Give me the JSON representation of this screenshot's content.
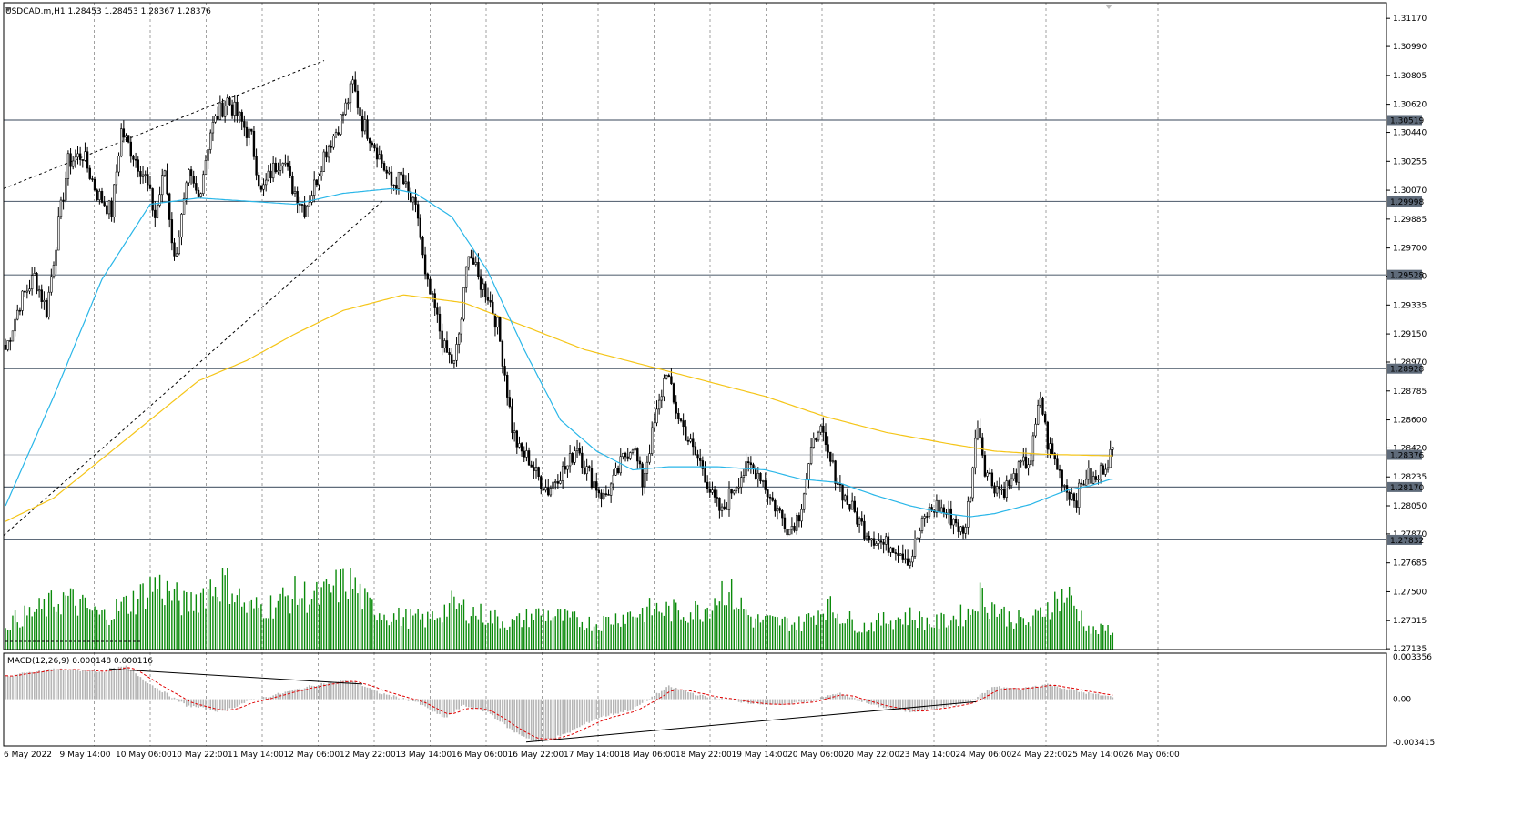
{
  "header": {
    "symbol_line": "USDCAD.m,H1  1.28453 1.28453 1.28367 1.28376"
  },
  "macd_label": "MACD(12,26,9) 0.000148 0.000116",
  "colors": {
    "candle": "#000000",
    "ma_fast": "#29b6e8",
    "ma_slow": "#f5c518",
    "volume": "#0a8a0a",
    "macd_hist": "#b5b5b5",
    "macd_signal": "#e00000",
    "hline": "#5f6b7a",
    "grid": "#8a8a8a",
    "price_box": "#5f6b7a"
  },
  "price_axis": {
    "ticks": [
      "1.31170",
      "1.30990",
      "1.30805",
      "1.30620",
      "1.30440",
      "1.30255",
      "1.30070",
      "1.29885",
      "1.29700",
      "1.29520",
      "1.29335",
      "1.29150",
      "1.28970",
      "1.28785",
      "1.28600",
      "1.28420",
      "1.28235",
      "1.28050",
      "1.27870",
      "1.27685",
      "1.27500",
      "1.27315",
      "1.27135"
    ],
    "levels": [
      "1.30519",
      "1.29998",
      "1.29528",
      "1.28928",
      "1.28376",
      "1.28170",
      "1.27832"
    ]
  },
  "macd_axis": {
    "ticks": [
      "0.003356",
      "0.00",
      "-0.003415"
    ]
  },
  "time_axis": [
    "6 May 2022",
    "9 May 14:00",
    "10 May 06:00",
    "10 May 22:00",
    "11 May 14:00",
    "12 May 06:00",
    "12 May 22:00",
    "13 May 14:00",
    "16 May 06:00",
    "16 May 22:00",
    "17 May 14:00",
    "18 May 06:00",
    "18 May 22:00",
    "19 May 14:00",
    "20 May 06:00",
    "20 May 22:00",
    "23 May 14:00",
    "24 May 06:00",
    "24 May 22:00",
    "25 May 14:00",
    "26 May 06:00"
  ],
  "chart_data": {
    "type": "candlestick",
    "symbol": "USDCAD.m",
    "timeframe": "H1",
    "last": {
      "open": 1.28453,
      "high": 1.28453,
      "low": 1.28367,
      "close": 1.28376
    },
    "price_range": [
      1.2713,
      1.3127
    ],
    "close_path": [
      [
        0,
        1.2905
      ],
      [
        6,
        1.2935
      ],
      [
        12,
        1.2952
      ],
      [
        17,
        1.293
      ],
      [
        22,
        1.2985
      ],
      [
        26,
        1.3025
      ],
      [
        32,
        1.303
      ],
      [
        38,
        1.3005
      ],
      [
        44,
        1.2993
      ],
      [
        48,
        1.3045
      ],
      [
        53,
        1.303
      ],
      [
        58,
        1.3015
      ],
      [
        62,
        1.299
      ],
      [
        66,
        1.302
      ],
      [
        70,
        1.2962
      ],
      [
        76,
        1.3015
      ],
      [
        80,
        1.3002
      ],
      [
        85,
        1.3045
      ],
      [
        88,
        1.3055
      ],
      [
        92,
        1.3065
      ],
      [
        96,
        1.3055
      ],
      [
        102,
        1.304
      ],
      [
        106,
        1.3005
      ],
      [
        110,
        1.3018
      ],
      [
        115,
        1.303
      ],
      [
        118,
        1.3012
      ],
      [
        124,
        1.2995
      ],
      [
        128,
        1.301
      ],
      [
        132,
        1.303
      ],
      [
        137,
        1.3045
      ],
      [
        141,
        1.306
      ],
      [
        144,
        1.3075
      ],
      [
        148,
        1.305
      ],
      [
        152,
        1.304
      ],
      [
        156,
        1.3025
      ],
      [
        160,
        1.301
      ],
      [
        164,
        1.3015
      ],
      [
        168,
        1.3
      ],
      [
        171,
        1.299
      ],
      [
        174,
        1.295
      ],
      [
        178,
        1.293
      ],
      [
        182,
        1.2905
      ],
      [
        186,
        1.2895
      ],
      [
        189,
        1.2925
      ],
      [
        192,
        1.297
      ],
      [
        196,
        1.295
      ],
      [
        200,
        1.294
      ],
      [
        204,
        1.292
      ],
      [
        207,
        1.289
      ],
      [
        210,
        1.2855
      ],
      [
        213,
        1.284
      ],
      [
        217,
        1.2835
      ],
      [
        220,
        1.2825
      ],
      [
        225,
        1.2815
      ],
      [
        229,
        1.2825
      ],
      [
        233,
        1.283
      ],
      [
        237,
        1.2845
      ],
      [
        240,
        1.283
      ],
      [
        244,
        1.282
      ],
      [
        248,
        1.281
      ],
      [
        252,
        1.282
      ],
      [
        256,
        1.2835
      ],
      [
        260,
        1.2845
      ],
      [
        264,
        1.282
      ],
      [
        268,
        1.285
      ],
      [
        271,
        1.287
      ],
      [
        274,
        1.2893
      ],
      [
        277,
        1.287
      ],
      [
        281,
        1.2855
      ],
      [
        285,
        1.284
      ],
      [
        289,
        1.283
      ],
      [
        293,
        1.281
      ],
      [
        297,
        1.28
      ],
      [
        301,
        1.2815
      ],
      [
        305,
        1.2825
      ],
      [
        309,
        1.283
      ],
      [
        313,
        1.2825
      ],
      [
        317,
        1.281
      ],
      [
        321,
        1.28
      ],
      [
        325,
        1.279
      ],
      [
        329,
        1.28
      ],
      [
        333,
        1.283
      ],
      [
        337,
        1.2858
      ],
      [
        340,
        1.284
      ],
      [
        344,
        1.2825
      ],
      [
        348,
        1.281
      ],
      [
        352,
        1.28
      ],
      [
        356,
        1.279
      ],
      [
        360,
        1.2785
      ],
      [
        364,
        1.278
      ],
      [
        368,
        1.278
      ],
      [
        372,
        1.2775
      ],
      [
        375,
        1.277
      ],
      [
        378,
        1.2785
      ],
      [
        382,
        1.28
      ],
      [
        386,
        1.2805
      ],
      [
        390,
        1.28
      ],
      [
        394,
        1.2795
      ],
      [
        397,
        1.2785
      ],
      [
        400,
        1.2815
      ],
      [
        403,
        1.286
      ],
      [
        406,
        1.283
      ],
      [
        409,
        1.282
      ],
      [
        413,
        1.2815
      ],
      [
        417,
        1.282
      ],
      [
        421,
        1.283
      ],
      [
        425,
        1.2835
      ],
      [
        429,
        1.2875
      ],
      [
        432,
        1.2845
      ],
      [
        436,
        1.283
      ],
      [
        440,
        1.2815
      ],
      [
        444,
        1.281
      ],
      [
        448,
        1.2825
      ],
      [
        452,
        1.282
      ],
      [
        455,
        1.283
      ],
      [
        458,
        1.2838
      ]
    ],
    "total_bars": 460,
    "ma_fast_path": [
      [
        0,
        1.2805
      ],
      [
        20,
        1.2875
      ],
      [
        40,
        1.295
      ],
      [
        60,
        1.2998
      ],
      [
        80,
        1.3002
      ],
      [
        100,
        1.3
      ],
      [
        120,
        1.2998
      ],
      [
        140,
        1.3005
      ],
      [
        160,
        1.3008
      ],
      [
        170,
        1.3005
      ],
      [
        185,
        1.299
      ],
      [
        200,
        1.2955
      ],
      [
        215,
        1.2905
      ],
      [
        230,
        1.286
      ],
      [
        245,
        1.284
      ],
      [
        260,
        1.2828
      ],
      [
        275,
        1.283
      ],
      [
        295,
        1.283
      ],
      [
        315,
        1.2828
      ],
      [
        330,
        1.2822
      ],
      [
        345,
        1.282
      ],
      [
        360,
        1.2812
      ],
      [
        375,
        1.2805
      ],
      [
        390,
        1.28
      ],
      [
        400,
        1.2798
      ],
      [
        410,
        1.28
      ],
      [
        425,
        1.2806
      ],
      [
        440,
        1.2815
      ],
      [
        450,
        1.2818
      ],
      [
        458,
        1.2822
      ]
    ],
    "ma_slow_path": [
      [
        0,
        1.2795
      ],
      [
        20,
        1.281
      ],
      [
        40,
        1.2835
      ],
      [
        60,
        1.286
      ],
      [
        80,
        1.2885
      ],
      [
        100,
        1.2898
      ],
      [
        120,
        1.2915
      ],
      [
        140,
        1.293
      ],
      [
        165,
        1.294
      ],
      [
        190,
        1.2935
      ],
      [
        215,
        1.292
      ],
      [
        240,
        1.2905
      ],
      [
        265,
        1.2895
      ],
      [
        290,
        1.2885
      ],
      [
        315,
        1.2875
      ],
      [
        340,
        1.2862
      ],
      [
        365,
        1.2852
      ],
      [
        390,
        1.2845
      ],
      [
        410,
        1.284
      ],
      [
        430,
        1.2838
      ],
      [
        458,
        1.2837
      ]
    ],
    "macd_hist_path": [
      [
        0,
        0.0018
      ],
      [
        20,
        0.0024
      ],
      [
        40,
        0.0022
      ],
      [
        50,
        0.0026
      ],
      [
        60,
        0.0012
      ],
      [
        75,
        -0.0005
      ],
      [
        90,
        -0.001
      ],
      [
        100,
        -0.0002
      ],
      [
        115,
        0.0005
      ],
      [
        130,
        0.0012
      ],
      [
        143,
        0.0015
      ],
      [
        155,
        0.0005
      ],
      [
        170,
        -0.0002
      ],
      [
        182,
        -0.0015
      ],
      [
        190,
        -0.0005
      ],
      [
        200,
        -0.001
      ],
      [
        210,
        -0.0025
      ],
      [
        220,
        -0.0034
      ],
      [
        232,
        -0.0028
      ],
      [
        245,
        -0.0015
      ],
      [
        260,
        -0.0008
      ],
      [
        275,
        0.001
      ],
      [
        290,
        0.0002
      ],
      [
        305,
        -0.0002
      ],
      [
        320,
        -0.0005
      ],
      [
        335,
        -0.0001
      ],
      [
        345,
        0.0005
      ],
      [
        360,
        -0.0005
      ],
      [
        375,
        -0.001
      ],
      [
        390,
        -0.0006
      ],
      [
        400,
        -0.0002
      ],
      [
        410,
        0.001
      ],
      [
        420,
        0.0008
      ],
      [
        432,
        0.0012
      ],
      [
        445,
        0.0006
      ],
      [
        458,
        0.0002
      ]
    ],
    "volume_path": [
      [
        0,
        0.35
      ],
      [
        15,
        0.55
      ],
      [
        25,
        0.7
      ],
      [
        40,
        0.45
      ],
      [
        55,
        0.7
      ],
      [
        62,
        0.9
      ],
      [
        75,
        0.6
      ],
      [
        85,
        0.85
      ],
      [
        92,
        0.95
      ],
      [
        100,
        0.55
      ],
      [
        110,
        0.6
      ],
      [
        120,
        0.75
      ],
      [
        130,
        0.7
      ],
      [
        143,
        0.95
      ],
      [
        150,
        0.6
      ],
      [
        160,
        0.45
      ],
      [
        175,
        0.4
      ],
      [
        185,
        0.6
      ],
      [
        200,
        0.45
      ],
      [
        210,
        0.35
      ],
      [
        222,
        0.5
      ],
      [
        235,
        0.4
      ],
      [
        245,
        0.35
      ],
      [
        255,
        0.45
      ],
      [
        270,
        0.55
      ],
      [
        280,
        0.5
      ],
      [
        290,
        0.55
      ],
      [
        298,
        0.85
      ],
      [
        310,
        0.4
      ],
      [
        330,
        0.35
      ],
      [
        340,
        0.6
      ],
      [
        355,
        0.3
      ],
      [
        365,
        0.4
      ],
      [
        375,
        0.45
      ],
      [
        385,
        0.35
      ],
      [
        400,
        0.5
      ],
      [
        403,
        0.75
      ],
      [
        415,
        0.45
      ],
      [
        425,
        0.35
      ],
      [
        432,
        0.6
      ],
      [
        440,
        0.75
      ],
      [
        450,
        0.25
      ],
      [
        458,
        0.28
      ]
    ]
  }
}
